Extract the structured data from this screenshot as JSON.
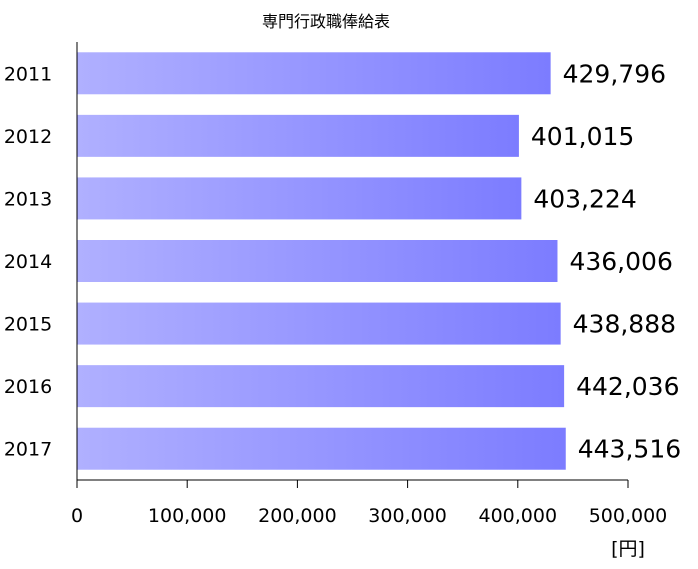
{
  "chart_data": {
    "type": "bar",
    "orientation": "horizontal",
    "title": "専門行政職俸給表",
    "categories": [
      "2011",
      "2012",
      "2013",
      "2014",
      "2015",
      "2016",
      "2017"
    ],
    "values": [
      429796,
      401015,
      403224,
      436006,
      438888,
      442036,
      443516
    ],
    "value_labels": [
      "429,796",
      "401,015",
      "403,224",
      "436,006",
      "438,888",
      "442,036",
      "443,516"
    ],
    "xlim": [
      0,
      500000
    ],
    "x_ticks": [
      0,
      100000,
      200000,
      300000,
      400000,
      500000
    ],
    "x_tick_labels": [
      "0",
      "100,000",
      "200,000",
      "300,000",
      "400,000",
      "500,000"
    ],
    "unit_label": "[円]",
    "grid": false,
    "legend": "none",
    "colors": {
      "bar_start": "#b0b0ff",
      "bar_end": "#7c7cff",
      "axis": "#000000"
    }
  }
}
